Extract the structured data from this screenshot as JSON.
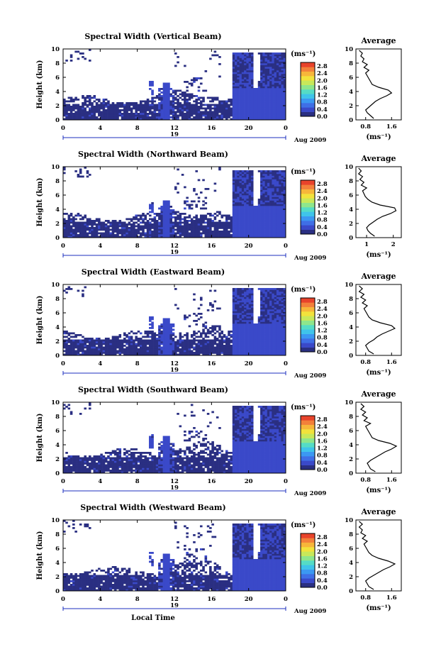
{
  "colors": {
    "scale": [
      "#2a2f82",
      "#3a49c9",
      "#3f6fe6",
      "#3b98f2",
      "#3fc4ea",
      "#55dcc6",
      "#8ee68c",
      "#c8e85a",
      "#f2e23c",
      "#f7b63a",
      "#f3803a",
      "#e8432b"
    ],
    "frame": "#000000",
    "axis_blue": "#1c2fbf"
  },
  "chart_data": [
    {
      "type": "heatmap",
      "title": "Spectral Width (Vertical Beam)",
      "xlabel": "",
      "ylabel": "Height (km)",
      "x_ticks": [
        "0",
        "4",
        "8",
        "12",
        "16",
        "20",
        "0"
      ],
      "y_ticks": [
        "0",
        "2",
        "4",
        "6",
        "8",
        "10"
      ],
      "xlim": [
        0,
        24
      ],
      "ylim": [
        0,
        10
      ],
      "date_label": "19",
      "date_tag": "Aug 2009",
      "colorbar": {
        "unit": "(ms⁻¹)",
        "ticks": [
          "0.0",
          "0.4",
          "0.8",
          "1.2",
          "1.6",
          "2.0",
          "2.4",
          "2.8"
        ],
        "range": [
          0,
          3.0
        ]
      },
      "average": {
        "title": "Average",
        "xlabel": "(ms⁻¹)",
        "x_ticks": [
          "0.8",
          "1.6"
        ],
        "xlim": [
          0.5,
          1.9
        ],
        "heights": [
          0.2,
          0.6,
          1.0,
          1.4,
          1.8,
          2.2,
          2.6,
          3.0,
          3.4,
          3.8,
          4.2,
          4.6,
          5.0,
          5.4,
          5.8,
          6.2,
          6.6,
          7.0,
          7.4,
          7.8,
          8.2,
          8.6,
          9.0,
          9.4,
          9.8
        ],
        "values": [
          1.05,
          0.95,
          0.85,
          0.8,
          0.9,
          1.0,
          1.1,
          1.25,
          1.45,
          1.6,
          1.5,
          1.2,
          1.0,
          0.95,
          0.9,
          0.85,
          0.8,
          0.9,
          0.75,
          0.85,
          0.7,
          0.75,
          0.65,
          0.7,
          0.6
        ]
      }
    },
    {
      "type": "heatmap",
      "title": "Spectral Width (Northward Beam)",
      "xlabel": "",
      "ylabel": "Height (km)",
      "x_ticks": [
        "0",
        "4",
        "8",
        "12",
        "16",
        "20",
        "0"
      ],
      "y_ticks": [
        "0",
        "2",
        "4",
        "6",
        "8",
        "10"
      ],
      "xlim": [
        0,
        24
      ],
      "ylim": [
        0,
        10
      ],
      "date_label": "19",
      "date_tag": "Aug 2009",
      "colorbar": {
        "unit": "(ms⁻¹)",
        "ticks": [
          "0.0",
          "0.4",
          "0.8",
          "1.2",
          "1.6",
          "2.0",
          "2.4",
          "2.8"
        ],
        "range": [
          0,
          3.0
        ]
      },
      "average": {
        "title": "Average",
        "xlabel": "(ms⁻¹)",
        "x_ticks": [
          "1",
          "2"
        ],
        "xlim": [
          0.6,
          2.3
        ],
        "heights": [
          0.2,
          0.6,
          1.0,
          1.4,
          1.8,
          2.2,
          2.6,
          3.0,
          3.4,
          3.8,
          4.2,
          4.6,
          5.0,
          5.4,
          5.8,
          6.2,
          6.6,
          7.0,
          7.4,
          7.8,
          8.2,
          8.6,
          9.0,
          9.4,
          9.8
        ],
        "values": [
          1.3,
          1.15,
          1.05,
          1.0,
          1.1,
          1.25,
          1.4,
          1.6,
          1.9,
          2.1,
          2.05,
          1.5,
          1.2,
          1.05,
          0.95,
          0.9,
          0.85,
          1.0,
          0.8,
          0.9,
          0.75,
          0.85,
          0.7,
          0.8,
          0.7
        ]
      }
    },
    {
      "type": "heatmap",
      "title": "Spectral Width (Eastward Beam)",
      "xlabel": "",
      "ylabel": "Height (km)",
      "x_ticks": [
        "0",
        "4",
        "8",
        "12",
        "16",
        "20",
        "0"
      ],
      "y_ticks": [
        "0",
        "2",
        "4",
        "6",
        "8",
        "10"
      ],
      "xlim": [
        0,
        24
      ],
      "ylim": [
        0,
        10
      ],
      "date_label": "19",
      "date_tag": "Aug 2009",
      "colorbar": {
        "unit": "(ms⁻¹)",
        "ticks": [
          "0.0",
          "0.4",
          "0.8",
          "1.2",
          "1.6",
          "2.0",
          "2.4",
          "2.8"
        ],
        "range": [
          0,
          3.0
        ]
      },
      "average": {
        "title": "Average",
        "xlabel": "(ms⁻¹)",
        "x_ticks": [
          "0.8",
          "1.6"
        ],
        "xlim": [
          0.5,
          1.9
        ],
        "heights": [
          0.2,
          0.6,
          1.0,
          1.4,
          1.8,
          2.2,
          2.6,
          3.0,
          3.4,
          3.8,
          4.2,
          4.6,
          5.0,
          5.4,
          5.8,
          6.2,
          6.6,
          7.0,
          7.4,
          7.8,
          8.2,
          8.6,
          9.0,
          9.4,
          9.8
        ],
        "values": [
          1.05,
          0.9,
          0.85,
          0.8,
          0.9,
          1.05,
          1.15,
          1.3,
          1.5,
          1.7,
          1.6,
          1.25,
          1.0,
          0.9,
          0.85,
          0.8,
          0.75,
          0.85,
          0.7,
          0.8,
          0.65,
          0.75,
          0.6,
          0.7,
          0.6
        ]
      }
    },
    {
      "type": "heatmap",
      "title": "Spectral Width (Southward Beam)",
      "xlabel": "",
      "ylabel": "Height (km)",
      "x_ticks": [
        "0",
        "4",
        "8",
        "12",
        "16",
        "20",
        "0"
      ],
      "y_ticks": [
        "0",
        "2",
        "4",
        "6",
        "8",
        "10"
      ],
      "xlim": [
        0,
        24
      ],
      "ylim": [
        0,
        10
      ],
      "date_label": "19",
      "date_tag": "Aug 2009",
      "colorbar": {
        "unit": "(ms⁻¹)",
        "ticks": [
          "0.0",
          "0.4",
          "0.8",
          "1.2",
          "1.6",
          "2.0",
          "2.4",
          "2.8"
        ],
        "range": [
          0,
          3.0
        ]
      },
      "average": {
        "title": "Average",
        "xlabel": "(ms⁻¹)",
        "x_ticks": [
          "0.8",
          "1.6"
        ],
        "xlim": [
          0.5,
          1.9
        ],
        "heights": [
          0.2,
          0.6,
          1.0,
          1.4,
          1.8,
          2.2,
          2.6,
          3.0,
          3.4,
          3.8,
          4.2,
          4.6,
          5.0,
          5.4,
          5.8,
          6.2,
          6.6,
          7.0,
          7.4,
          7.8,
          8.2,
          8.6,
          9.0,
          9.4,
          9.8
        ],
        "values": [
          1.1,
          0.95,
          0.9,
          0.85,
          0.95,
          1.1,
          1.25,
          1.4,
          1.6,
          1.75,
          1.55,
          1.2,
          1.0,
          0.95,
          0.9,
          0.85,
          0.8,
          0.95,
          0.75,
          0.85,
          0.7,
          0.8,
          0.65,
          0.75,
          0.65
        ]
      }
    },
    {
      "type": "heatmap",
      "title": "Spectral Width (Westward Beam)",
      "xlabel": "Local Time",
      "ylabel": "Height (km)",
      "x_ticks": [
        "0",
        "4",
        "8",
        "12",
        "16",
        "20",
        "0"
      ],
      "y_ticks": [
        "0",
        "2",
        "4",
        "6",
        "8",
        "10"
      ],
      "xlim": [
        0,
        24
      ],
      "ylim": [
        0,
        10
      ],
      "date_label": "19",
      "date_tag": "Aug 2009",
      "colorbar": {
        "unit": "(ms⁻¹)",
        "ticks": [
          "0.0",
          "0.4",
          "0.8",
          "1.2",
          "1.6",
          "2.0",
          "2.4",
          "2.8"
        ],
        "range": [
          0,
          3.0
        ]
      },
      "average": {
        "title": "Average",
        "xlabel": "(ms⁻¹)",
        "x_ticks": [
          "0.8",
          "1.6"
        ],
        "xlim": [
          0.5,
          1.9
        ],
        "heights": [
          0.2,
          0.6,
          1.0,
          1.4,
          1.8,
          2.2,
          2.6,
          3.0,
          3.4,
          3.8,
          4.2,
          4.6,
          5.0,
          5.4,
          5.8,
          6.2,
          6.6,
          7.0,
          7.4,
          7.8,
          8.2,
          8.6,
          9.0,
          9.4,
          9.8
        ],
        "values": [
          1.05,
          0.9,
          0.85,
          0.8,
          0.9,
          1.05,
          1.2,
          1.35,
          1.55,
          1.7,
          1.5,
          1.2,
          1.0,
          0.9,
          0.85,
          0.8,
          0.75,
          0.85,
          0.7,
          0.8,
          0.65,
          0.7,
          0.6,
          0.7,
          0.6
        ]
      }
    }
  ]
}
